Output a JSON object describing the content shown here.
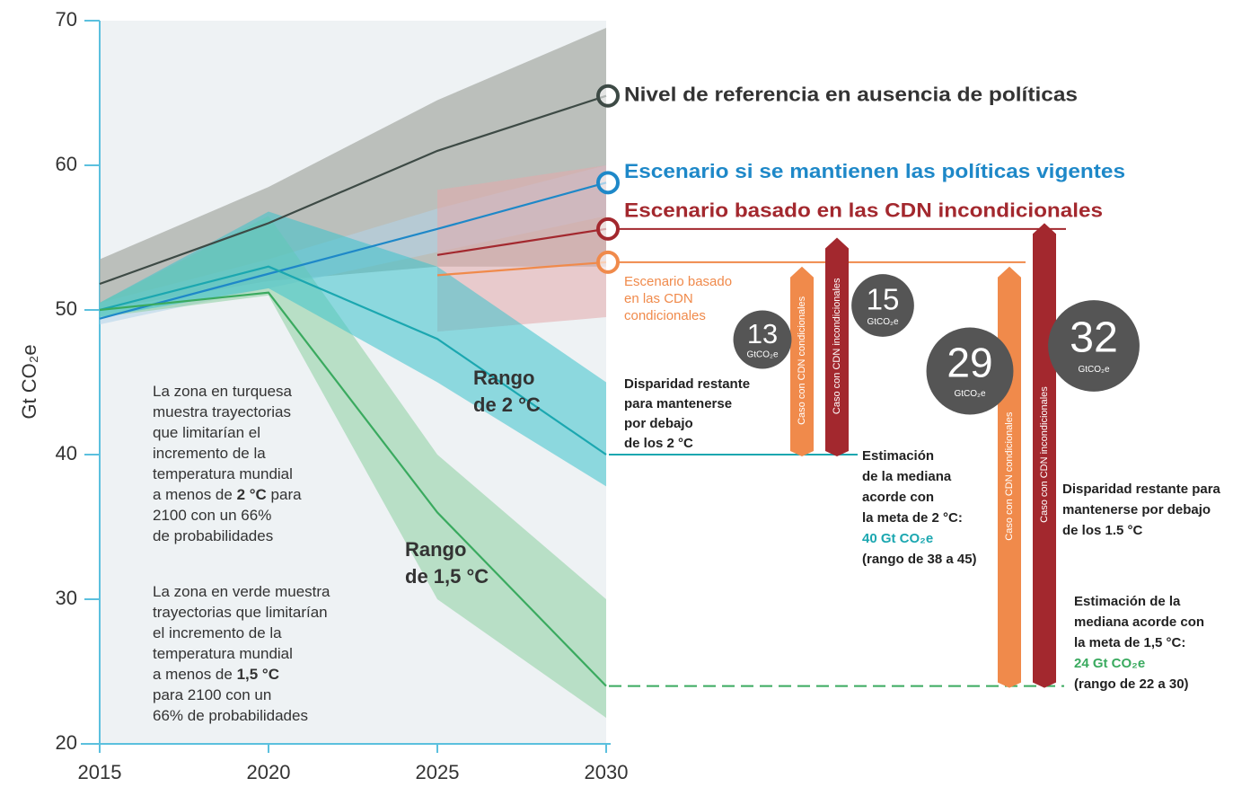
{
  "chart_data": {
    "type": "line",
    "x": [
      2015,
      2020,
      2025,
      2030
    ],
    "xlim": [
      2015,
      2030
    ],
    "xticks": [
      2015,
      2020,
      2025,
      2030
    ],
    "ylim": [
      20,
      70
    ],
    "yticks": [
      20,
      30,
      40,
      50,
      60,
      70
    ],
    "ylabel": "Gt CO₂e",
    "series": [
      {
        "name": "Nivel de referencia en ausencia de políticas",
        "color": "#3d4a45",
        "band_color": "#a9ada8",
        "values": [
          51.8,
          56,
          61,
          64.8
        ],
        "upper": [
          53.5,
          58.5,
          64.5,
          69.5
        ],
        "lower": [
          50,
          52,
          53,
          53
        ]
      },
      {
        "name": "Escenario si se mantienen las políticas vigentes",
        "color": "#1e88c8",
        "band_color": "#b3d3ea",
        "values": [
          49.4,
          52.5,
          55.6,
          58.8
        ],
        "upper": [
          50.5,
          53.5,
          57,
          60
        ],
        "lower": [
          49,
          51.5,
          54,
          56.5
        ]
      },
      {
        "name": "Escenario basado en las CDN incondicionales",
        "color": "#a3282e",
        "band_color": "#e3a9ab",
        "values": [
          null,
          null,
          53.8,
          55.6
        ],
        "upper": [
          null,
          null,
          58.3,
          60
        ],
        "lower": [
          null,
          null,
          48.5,
          49.5
        ]
      },
      {
        "name": "Escenario basado en las CDN condicionales",
        "color": "#f08a4b",
        "values": [
          null,
          null,
          52.4,
          53.3
        ]
      },
      {
        "color": "#1ba7b0",
        "band_color": "#3cc3cc",
        "values": [
          50,
          53,
          48,
          40
        ],
        "upper": [
          50.5,
          56.8,
          53,
          45
        ],
        "lower": [
          49.5,
          51.5,
          45,
          37.8
        ]
      },
      {
        "color": "#3aaa5f",
        "band_color": "#8dcfa0",
        "values": [
          50,
          51.2,
          36,
          24
        ],
        "upper": [
          50.5,
          56.5,
          40,
          30
        ],
        "lower": [
          49.5,
          51,
          30,
          21.8
        ]
      }
    ],
    "annotations": [
      {
        "lines": [
          [
            {
              "text": "Rango",
              "bold": true
            }
          ],
          [
            {
              "text": "de 2 °C",
              "bold": true
            }
          ]
        ]
      },
      {
        "lines": [
          [
            {
              "text": "Rango",
              "bold": true
            }
          ],
          [
            {
              "text": "de 1,5 °C",
              "bold": true
            }
          ]
        ]
      },
      {
        "lines": [
          [
            "La zona en turquesa"
          ],
          [
            "muestra trayectorias"
          ],
          [
            "que limitarían el"
          ],
          [
            "incremento de la"
          ],
          [
            "temperatura mundial"
          ],
          [
            "a menos de ",
            {
              "text": "2 °C",
              "bold": true
            },
            " para"
          ],
          [
            "2100 con un 66%"
          ],
          [
            "de probabilidades"
          ]
        ]
      },
      {
        "lines": [
          [
            "La zona en verde muestra"
          ],
          [
            "trayectorias que limitarían"
          ],
          [
            "el incremento de la"
          ],
          [
            "temperatura mundial"
          ],
          [
            "a menos de ",
            {
              "text": "1,5 °C",
              "bold": true
            }
          ],
          [
            "para 2100 con un"
          ],
          [
            "66% de probabilidades"
          ]
        ]
      },
      {
        "lines": [
          [
            {
              "text": "Disparidad restante",
              "bold": true
            }
          ],
          [
            {
              "text": "para mantenerse",
              "bold": true
            }
          ],
          [
            {
              "text": "por debajo",
              "bold": true
            }
          ],
          [
            {
              "text": "de los 2 °C",
              "bold": true
            }
          ]
        ]
      },
      {
        "lines": [
          [
            {
              "text": "Disparidad restante para",
              "bold": true
            }
          ],
          [
            {
              "text": "mantenerse por debajo",
              "bold": true
            }
          ],
          [
            {
              "text": "de los 1.5 °C",
              "bold": true
            }
          ]
        ]
      }
    ],
    "gap_unit": "GtCO₂e",
    "targets": [
      {
        "value": 40,
        "label": "40 Gt CO₂e",
        "color": "#1ba7b0",
        "line_style": "solid",
        "lines": [
          "Estimación",
          "de la mediana",
          "acorde con",
          "la meta de 2 °C:"
        ],
        "range": "(rango de 38 a 45)",
        "gaps": [
          {
            "value": 13,
            "bar_label": "Caso con CDN condicionales",
            "color": "#f08a4b"
          },
          {
            "value": 15,
            "bar_label": "Caso con CDN incondicionales",
            "color": "#a3282e"
          }
        ]
      },
      {
        "value": 24,
        "label": "24 Gt CO₂e",
        "color": "#3aaa5f",
        "line_style": "dashed",
        "lines": [
          "Estimación de la",
          "mediana acorde con",
          "la meta de 1,5 °C:"
        ],
        "range": "(rango de 22 a 30)",
        "gaps": [
          {
            "value": 29,
            "bar_label": "Caso con CDN condicionales",
            "color": "#f08a4b"
          },
          {
            "value": 32,
            "bar_label": "Caso con CDN incondicionales",
            "color": "#a3282e"
          }
        ]
      }
    ]
  }
}
